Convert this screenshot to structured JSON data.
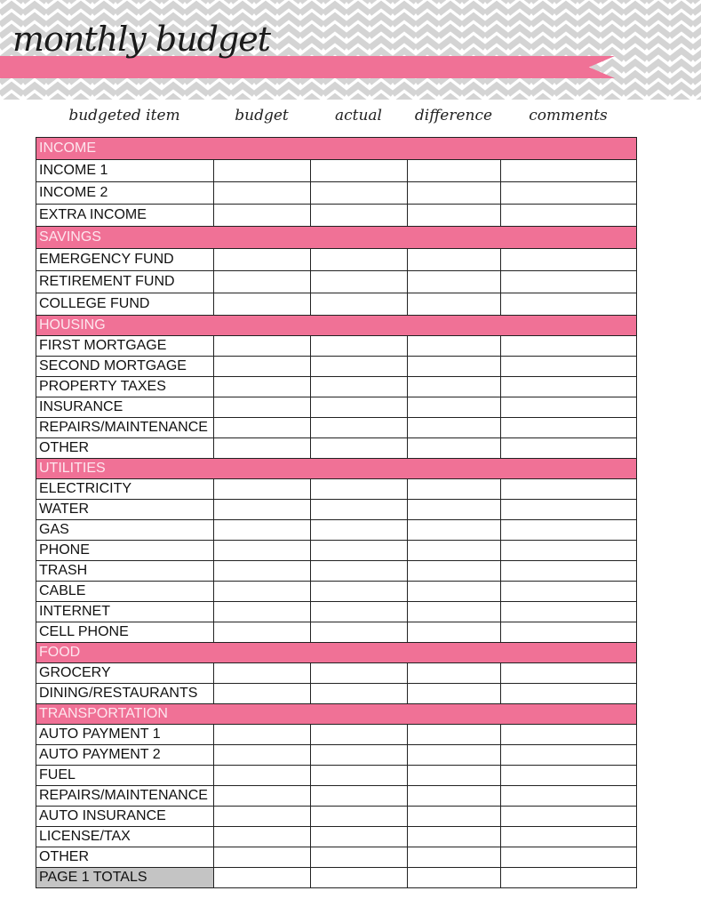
{
  "title": "monthly budget",
  "colors": {
    "accent": "#f07196",
    "chevron": "#d4d4d4",
    "totals": "#c4c4c4"
  },
  "columns": [
    "budgeted item",
    "budget",
    "actual",
    "difference",
    "comments"
  ],
  "sections": [
    {
      "name": "INCOME",
      "items": [
        "INCOME 1",
        "INCOME 2",
        "EXTRA INCOME"
      ]
    },
    {
      "name": "SAVINGS",
      "items": [
        "EMERGENCY FUND",
        "RETIREMENT FUND",
        "COLLEGE FUND"
      ]
    },
    {
      "name": "HOUSING",
      "items": [
        "FIRST MORTGAGE",
        "SECOND MORTGAGE",
        "PROPERTY TAXES",
        "INSURANCE",
        "REPAIRS/MAINTENANCE",
        "OTHER"
      ]
    },
    {
      "name": "UTILITIES",
      "items": [
        "ELECTRICITY",
        "WATER",
        "GAS",
        "PHONE",
        "TRASH",
        "CABLE",
        "INTERNET",
        "CELL PHONE"
      ]
    },
    {
      "name": "FOOD",
      "items": [
        "GROCERY",
        "DINING/RESTAURANTS"
      ]
    },
    {
      "name": "TRANSPORTATION",
      "items": [
        "AUTO PAYMENT 1",
        "AUTO PAYMENT 2",
        "FUEL",
        "REPAIRS/MAINTENANCE",
        "AUTO INSURANCE",
        "LICENSE/TAX",
        "OTHER"
      ]
    }
  ],
  "totals_label": "PAGE 1 TOTALS"
}
